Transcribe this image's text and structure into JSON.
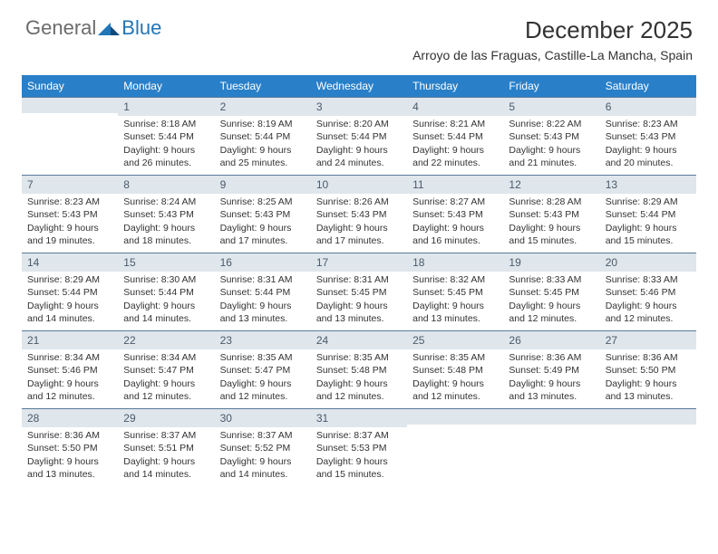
{
  "logo": {
    "general": "General",
    "blue": "Blue"
  },
  "title": "December 2025",
  "location": "Arroyo de las Fraguas, Castille-La Mancha, Spain",
  "colors": {
    "header_bg": "#2980c9",
    "daybar_bg": "#dfe6ec",
    "daybar_border": "#5b7a9a",
    "logo_gray": "#6b6b6b",
    "logo_blue": "#2176b8"
  },
  "weekdays": [
    "Sunday",
    "Monday",
    "Tuesday",
    "Wednesday",
    "Thursday",
    "Friday",
    "Saturday"
  ],
  "weeks": [
    [
      {
        "num": "",
        "sunrise": "",
        "sunset": "",
        "daylight": ""
      },
      {
        "num": "1",
        "sunrise": "Sunrise: 8:18 AM",
        "sunset": "Sunset: 5:44 PM",
        "daylight": "Daylight: 9 hours and 26 minutes."
      },
      {
        "num": "2",
        "sunrise": "Sunrise: 8:19 AM",
        "sunset": "Sunset: 5:44 PM",
        "daylight": "Daylight: 9 hours and 25 minutes."
      },
      {
        "num": "3",
        "sunrise": "Sunrise: 8:20 AM",
        "sunset": "Sunset: 5:44 PM",
        "daylight": "Daylight: 9 hours and 24 minutes."
      },
      {
        "num": "4",
        "sunrise": "Sunrise: 8:21 AM",
        "sunset": "Sunset: 5:44 PM",
        "daylight": "Daylight: 9 hours and 22 minutes."
      },
      {
        "num": "5",
        "sunrise": "Sunrise: 8:22 AM",
        "sunset": "Sunset: 5:43 PM",
        "daylight": "Daylight: 9 hours and 21 minutes."
      },
      {
        "num": "6",
        "sunrise": "Sunrise: 8:23 AM",
        "sunset": "Sunset: 5:43 PM",
        "daylight": "Daylight: 9 hours and 20 minutes."
      }
    ],
    [
      {
        "num": "7",
        "sunrise": "Sunrise: 8:23 AM",
        "sunset": "Sunset: 5:43 PM",
        "daylight": "Daylight: 9 hours and 19 minutes."
      },
      {
        "num": "8",
        "sunrise": "Sunrise: 8:24 AM",
        "sunset": "Sunset: 5:43 PM",
        "daylight": "Daylight: 9 hours and 18 minutes."
      },
      {
        "num": "9",
        "sunrise": "Sunrise: 8:25 AM",
        "sunset": "Sunset: 5:43 PM",
        "daylight": "Daylight: 9 hours and 17 minutes."
      },
      {
        "num": "10",
        "sunrise": "Sunrise: 8:26 AM",
        "sunset": "Sunset: 5:43 PM",
        "daylight": "Daylight: 9 hours and 17 minutes."
      },
      {
        "num": "11",
        "sunrise": "Sunrise: 8:27 AM",
        "sunset": "Sunset: 5:43 PM",
        "daylight": "Daylight: 9 hours and 16 minutes."
      },
      {
        "num": "12",
        "sunrise": "Sunrise: 8:28 AM",
        "sunset": "Sunset: 5:43 PM",
        "daylight": "Daylight: 9 hours and 15 minutes."
      },
      {
        "num": "13",
        "sunrise": "Sunrise: 8:29 AM",
        "sunset": "Sunset: 5:44 PM",
        "daylight": "Daylight: 9 hours and 15 minutes."
      }
    ],
    [
      {
        "num": "14",
        "sunrise": "Sunrise: 8:29 AM",
        "sunset": "Sunset: 5:44 PM",
        "daylight": "Daylight: 9 hours and 14 minutes."
      },
      {
        "num": "15",
        "sunrise": "Sunrise: 8:30 AM",
        "sunset": "Sunset: 5:44 PM",
        "daylight": "Daylight: 9 hours and 14 minutes."
      },
      {
        "num": "16",
        "sunrise": "Sunrise: 8:31 AM",
        "sunset": "Sunset: 5:44 PM",
        "daylight": "Daylight: 9 hours and 13 minutes."
      },
      {
        "num": "17",
        "sunrise": "Sunrise: 8:31 AM",
        "sunset": "Sunset: 5:45 PM",
        "daylight": "Daylight: 9 hours and 13 minutes."
      },
      {
        "num": "18",
        "sunrise": "Sunrise: 8:32 AM",
        "sunset": "Sunset: 5:45 PM",
        "daylight": "Daylight: 9 hours and 13 minutes."
      },
      {
        "num": "19",
        "sunrise": "Sunrise: 8:33 AM",
        "sunset": "Sunset: 5:45 PM",
        "daylight": "Daylight: 9 hours and 12 minutes."
      },
      {
        "num": "20",
        "sunrise": "Sunrise: 8:33 AM",
        "sunset": "Sunset: 5:46 PM",
        "daylight": "Daylight: 9 hours and 12 minutes."
      }
    ],
    [
      {
        "num": "21",
        "sunrise": "Sunrise: 8:34 AM",
        "sunset": "Sunset: 5:46 PM",
        "daylight": "Daylight: 9 hours and 12 minutes."
      },
      {
        "num": "22",
        "sunrise": "Sunrise: 8:34 AM",
        "sunset": "Sunset: 5:47 PM",
        "daylight": "Daylight: 9 hours and 12 minutes."
      },
      {
        "num": "23",
        "sunrise": "Sunrise: 8:35 AM",
        "sunset": "Sunset: 5:47 PM",
        "daylight": "Daylight: 9 hours and 12 minutes."
      },
      {
        "num": "24",
        "sunrise": "Sunrise: 8:35 AM",
        "sunset": "Sunset: 5:48 PM",
        "daylight": "Daylight: 9 hours and 12 minutes."
      },
      {
        "num": "25",
        "sunrise": "Sunrise: 8:35 AM",
        "sunset": "Sunset: 5:48 PM",
        "daylight": "Daylight: 9 hours and 12 minutes."
      },
      {
        "num": "26",
        "sunrise": "Sunrise: 8:36 AM",
        "sunset": "Sunset: 5:49 PM",
        "daylight": "Daylight: 9 hours and 13 minutes."
      },
      {
        "num": "27",
        "sunrise": "Sunrise: 8:36 AM",
        "sunset": "Sunset: 5:50 PM",
        "daylight": "Daylight: 9 hours and 13 minutes."
      }
    ],
    [
      {
        "num": "28",
        "sunrise": "Sunrise: 8:36 AM",
        "sunset": "Sunset: 5:50 PM",
        "daylight": "Daylight: 9 hours and 13 minutes."
      },
      {
        "num": "29",
        "sunrise": "Sunrise: 8:37 AM",
        "sunset": "Sunset: 5:51 PM",
        "daylight": "Daylight: 9 hours and 14 minutes."
      },
      {
        "num": "30",
        "sunrise": "Sunrise: 8:37 AM",
        "sunset": "Sunset: 5:52 PM",
        "daylight": "Daylight: 9 hours and 14 minutes."
      },
      {
        "num": "31",
        "sunrise": "Sunrise: 8:37 AM",
        "sunset": "Sunset: 5:53 PM",
        "daylight": "Daylight: 9 hours and 15 minutes."
      },
      {
        "num": "",
        "sunrise": "",
        "sunset": "",
        "daylight": ""
      },
      {
        "num": "",
        "sunrise": "",
        "sunset": "",
        "daylight": ""
      },
      {
        "num": "",
        "sunrise": "",
        "sunset": "",
        "daylight": ""
      }
    ]
  ]
}
